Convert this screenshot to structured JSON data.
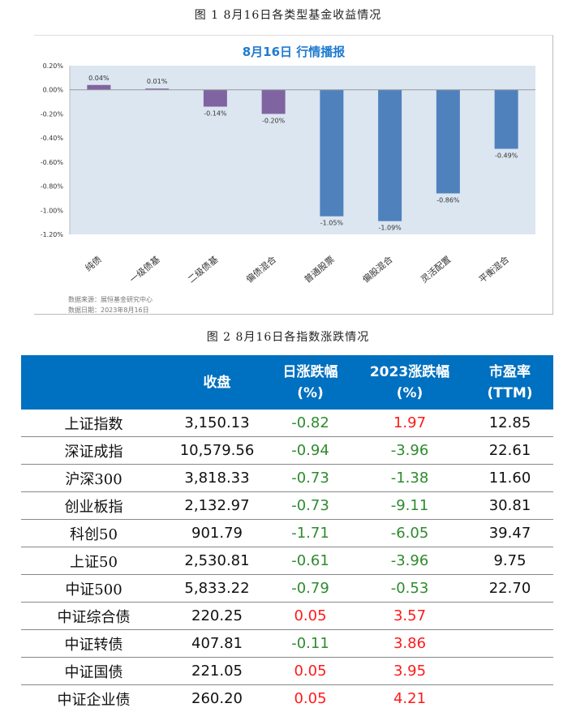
{
  "figure1_caption": "图 1   8月16日各类型基金收益情况",
  "figure2_caption": "图 2   8月16日各指数涨跌情况",
  "chart_data": {
    "type": "bar",
    "title": "8月16日  行情播报",
    "categories": [
      "纯债",
      "一级债基",
      "二级债基",
      "偏债混合",
      "普通股票",
      "偏股混合",
      "灵活配置",
      "平衡混合"
    ],
    "values": [
      0.04,
      0.01,
      -0.14,
      -0.2,
      -1.05,
      -1.09,
      -0.86,
      -0.49
    ],
    "value_labels": [
      "0.04%",
      "0.01%",
      "-0.14%",
      "-0.20%",
      "-1.05%",
      "-1.09%",
      "-0.86%",
      "-0.49%"
    ],
    "colors": [
      "#8064a2",
      "#8064a2",
      "#8064a2",
      "#8064a2",
      "#4f81bd",
      "#4f81bd",
      "#4f81bd",
      "#4f81bd"
    ],
    "ylim": [
      -1.2,
      0.2
    ],
    "yticks": [
      "0.20%",
      "0.00%",
      "-0.20%",
      "-0.40%",
      "-0.60%",
      "-0.80%",
      "-1.00%",
      "-1.20%"
    ],
    "plot_background": "#dce6f1",
    "grid": false,
    "source_note": "数据来源：展恒基金研究中心",
    "date_note": "数据日期：2023年8月16日"
  },
  "table": {
    "header": [
      "",
      "收盘",
      "日涨跌幅\n(%)",
      "2023涨跌幅\n(%)",
      "市盈率\n(TTM)"
    ],
    "header_color": "#0070c0",
    "rows": [
      [
        "上证指数",
        "3,150.13",
        "-0.82",
        "1.97",
        "12.85"
      ],
      [
        "深证成指",
        "10,579.56",
        "-0.94",
        "-3.96",
        "22.61"
      ],
      [
        "沪深300",
        "3,818.33",
        "-0.73",
        "-1.38",
        "11.60"
      ],
      [
        "创业板指",
        "2,132.97",
        "-0.73",
        "-9.11",
        "30.81"
      ],
      [
        "科创50",
        "901.79",
        "-1.71",
        "-6.05",
        "39.47"
      ],
      [
        "上证50",
        "2,530.81",
        "-0.61",
        "-3.96",
        "9.75"
      ],
      [
        "中证500",
        "5,833.22",
        "-0.79",
        "-0.53",
        "22.70"
      ],
      [
        "中证综合债",
        "220.25",
        "0.05",
        "3.57",
        ""
      ],
      [
        "中证转债",
        "407.81",
        "-0.11",
        "3.86",
        ""
      ],
      [
        "中证国债",
        "221.05",
        "0.05",
        "3.95",
        ""
      ],
      [
        "中证企业债",
        "260.20",
        "0.05",
        "4.21",
        ""
      ]
    ]
  }
}
